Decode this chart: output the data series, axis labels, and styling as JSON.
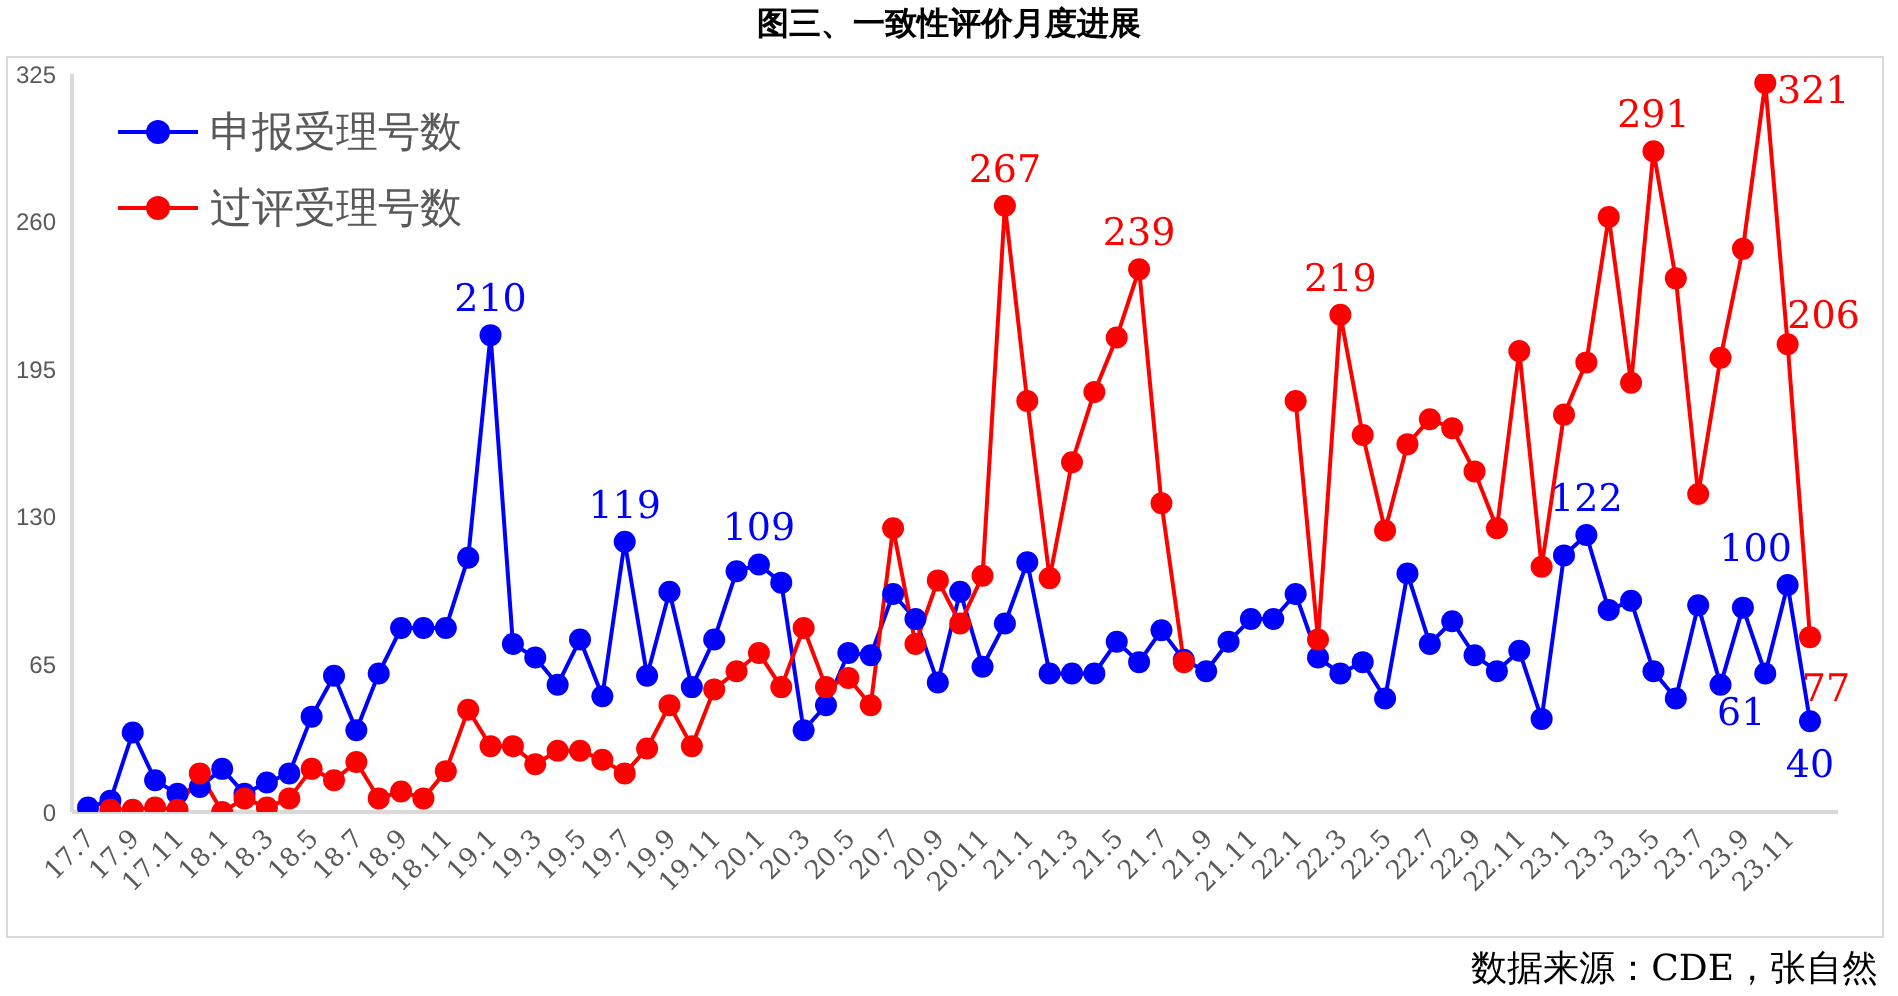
{
  "chart_data": {
    "type": "line",
    "title": "图三、一致性评价月度进展",
    "categories": [
      "17.7",
      null,
      "17.9",
      null,
      "17.11",
      null,
      "18.1",
      null,
      "18.3",
      null,
      "18.5",
      null,
      "18.7",
      null,
      "18.9",
      null,
      "18.11",
      null,
      "19.1",
      null,
      "19.3",
      null,
      "19.5",
      null,
      "19.7",
      null,
      "19.9",
      null,
      "19.11",
      null,
      "20.1",
      null,
      "20.3",
      null,
      "20.5",
      null,
      "20.7",
      null,
      "20.9",
      null,
      "20.11",
      null,
      "21.1",
      null,
      "21.3",
      null,
      "21.5",
      null,
      "21.7",
      null,
      "21.9",
      null,
      "21.11",
      null,
      "22.1",
      null,
      "22.3",
      null,
      "22.5",
      null,
      "22.7",
      null,
      "22.9",
      null,
      "22.11",
      null,
      "23.1",
      null,
      "23.3",
      null,
      "23.5",
      null,
      "23.7",
      null,
      "23.9",
      null,
      "23.11",
      null
    ],
    "series": [
      {
        "name": "申报受理号数",
        "color": "#0000ff",
        "values": [
          2,
          5,
          35,
          14,
          8,
          11,
          19,
          8,
          13,
          17,
          42,
          60,
          36,
          61,
          81,
          81,
          81,
          112,
          210,
          74,
          68,
          56,
          76,
          51,
          119,
          60,
          97,
          55,
          76,
          106,
          109,
          101,
          36,
          47,
          70,
          69,
          96,
          85,
          57,
          97,
          64,
          83,
          110,
          61,
          61,
          61,
          75,
          66,
          80,
          67,
          62,
          75,
          85,
          85,
          96,
          68,
          61,
          66,
          50,
          105,
          74,
          84,
          69,
          62,
          71,
          41,
          113,
          122,
          89,
          93,
          62,
          50,
          91,
          56,
          90,
          61,
          100,
          40
        ],
        "value_labels": [
          null,
          null,
          null,
          null,
          null,
          null,
          null,
          null,
          null,
          null,
          null,
          null,
          null,
          null,
          null,
          null,
          null,
          null,
          "210",
          null,
          null,
          null,
          null,
          null,
          "119",
          null,
          null,
          null,
          null,
          null,
          "109",
          null,
          null,
          null,
          null,
          null,
          null,
          null,
          null,
          null,
          null,
          null,
          null,
          null,
          null,
          null,
          null,
          null,
          null,
          null,
          null,
          null,
          null,
          null,
          null,
          null,
          null,
          null,
          null,
          null,
          null,
          null,
          null,
          null,
          null,
          null,
          null,
          "122",
          null,
          null,
          null,
          null,
          null,
          null,
          null,
          "61",
          "100",
          "40"
        ]
      },
      {
        "name": "过评受理号数",
        "color": "#ff0000",
        "values": [
          null,
          1,
          1,
          2,
          1,
          17,
          0,
          6,
          2,
          6,
          19,
          14,
          22,
          6,
          9,
          6,
          18,
          45,
          29,
          29,
          21,
          27,
          27,
          23,
          17,
          28,
          47,
          29,
          54,
          62,
          70,
          55,
          81,
          55,
          59,
          47,
          125,
          74,
          102,
          83,
          104,
          267,
          181,
          103,
          154,
          185,
          209,
          239,
          136,
          66,
          null,
          null,
          null,
          null,
          181,
          76,
          219,
          166,
          124,
          162,
          173,
          169,
          150,
          125,
          203,
          108,
          175,
          198,
          262,
          189,
          291,
          235,
          140,
          200,
          248,
          321,
          206,
          77
        ],
        "value_labels": [
          null,
          null,
          null,
          null,
          null,
          null,
          null,
          null,
          null,
          null,
          null,
          null,
          null,
          null,
          null,
          null,
          null,
          null,
          null,
          null,
          null,
          null,
          null,
          null,
          null,
          null,
          null,
          null,
          null,
          null,
          null,
          null,
          null,
          null,
          null,
          null,
          null,
          null,
          null,
          null,
          null,
          "267",
          null,
          null,
          null,
          null,
          null,
          "239",
          null,
          null,
          null,
          null,
          null,
          null,
          null,
          null,
          "219",
          null,
          null,
          null,
          null,
          null,
          null,
          null,
          null,
          null,
          null,
          null,
          null,
          null,
          "291",
          null,
          null,
          null,
          null,
          "321",
          "206",
          "77"
        ]
      }
    ],
    "ylim": [
      0,
      325
    ],
    "yticks": [
      0,
      65,
      130,
      195,
      260,
      325
    ],
    "grid": false,
    "legend": "top left",
    "marker": "circle",
    "line_style": "solid",
    "annotations": [
      "数据来源：CDE，张自然"
    ]
  }
}
